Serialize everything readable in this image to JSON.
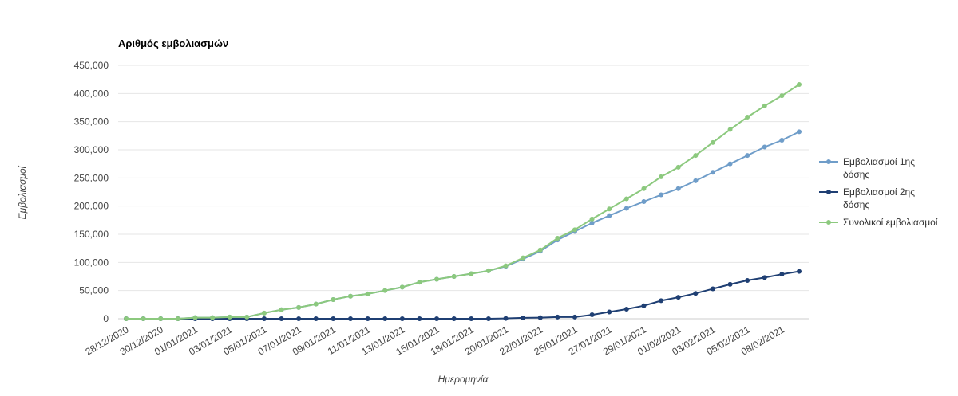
{
  "chart_data": {
    "type": "line",
    "title": "Αριθμός εμβολιασμών",
    "xlabel": "Ημερομηνία",
    "ylabel": "Εμβολιασμοί",
    "ylim": [
      0,
      450000
    ],
    "yticks": [
      "0",
      "50,000",
      "100,000",
      "150,000",
      "200,000",
      "250,000",
      "300,000",
      "350,000",
      "400,000",
      "450,000"
    ],
    "ytick_values": [
      0,
      50000,
      100000,
      150000,
      200000,
      250000,
      300000,
      350000,
      400000,
      450000
    ],
    "x": [
      "28/12/2020",
      "29/12/2020",
      "30/12/2020",
      "31/12/2020",
      "01/01/2021",
      "02/01/2021",
      "03/01/2021",
      "04/01/2021",
      "05/01/2021",
      "06/01/2021",
      "07/01/2021",
      "08/01/2021",
      "09/01/2021",
      "10/01/2021",
      "11/01/2021",
      "12/01/2021",
      "13/01/2021",
      "14/01/2021",
      "15/01/2021",
      "17/01/2021",
      "18/01/2021",
      "19/01/2021",
      "20/01/2021",
      "21/01/2021",
      "22/01/2021",
      "24/01/2021",
      "25/01/2021",
      "26/01/2021",
      "27/01/2021",
      "28/01/2021",
      "29/01/2021",
      "30/01/2021",
      "01/02/2021",
      "02/02/2021",
      "03/02/2021",
      "04/02/2021",
      "05/02/2021",
      "06/02/2021",
      "08/02/2021",
      "09/02/2021"
    ],
    "xtick_labels": [
      "28/12/2020",
      "30/12/2020",
      "01/01/2021",
      "03/01/2021",
      "05/01/2021",
      "07/01/2021",
      "09/01/2021",
      "11/01/2021",
      "13/01/2021",
      "15/01/2021",
      "18/01/2021",
      "20/01/2021",
      "22/01/2021",
      "25/01/2021",
      "27/01/2021",
      "29/01/2021",
      "01/02/2021",
      "03/02/2021",
      "05/02/2021",
      "08/02/2021"
    ],
    "series": [
      {
        "name": "Εμβολιασμοί 1ης δόσης",
        "color": "#6f9dc9",
        "values": [
          0,
          0,
          0,
          0,
          2000,
          2000,
          3000,
          3000,
          10000,
          16000,
          20000,
          26000,
          34000,
          40000,
          44000,
          50000,
          56000,
          65000,
          70000,
          75000,
          80000,
          85000,
          93000,
          106000,
          120000,
          140000,
          155000,
          170000,
          183000,
          196000,
          208000,
          220000,
          231000,
          245000,
          260000,
          275000,
          290000,
          305000,
          317000,
          332000
        ]
      },
      {
        "name": "Εμβολιασμοί 2ης δόσης",
        "color": "#1f3f73",
        "values": [
          0,
          0,
          0,
          0,
          0,
          0,
          0,
          0,
          0,
          0,
          0,
          0,
          0,
          0,
          0,
          0,
          0,
          0,
          0,
          0,
          0,
          0,
          500,
          1500,
          2000,
          3000,
          3000,
          7000,
          12000,
          17000,
          23000,
          32000,
          38000,
          45000,
          53000,
          61000,
          68000,
          73000,
          79000,
          84000
        ]
      },
      {
        "name": "Συνολικοί εμβολιασμοί",
        "color": "#8cc97e",
        "values": [
          0,
          0,
          0,
          0,
          2000,
          2000,
          3000,
          3000,
          10000,
          16000,
          20000,
          26000,
          34000,
          40000,
          44000,
          50000,
          56000,
          65000,
          70000,
          75000,
          80000,
          85000,
          94000,
          108000,
          122000,
          143000,
          158000,
          177000,
          195000,
          213000,
          231000,
          252000,
          269000,
          290000,
          313000,
          336000,
          358000,
          378000,
          396000,
          416000
        ]
      }
    ],
    "legend": {
      "position": "right",
      "entries": [
        {
          "lines": [
            "Εμβολιασμοί 1ης",
            "δόσης"
          ]
        },
        {
          "lines": [
            "Εμβολιασμοί 2ης",
            "δόσης"
          ]
        },
        {
          "lines": [
            "Συνολικοί εμβολιασμοί"
          ]
        }
      ]
    },
    "grid": true
  }
}
